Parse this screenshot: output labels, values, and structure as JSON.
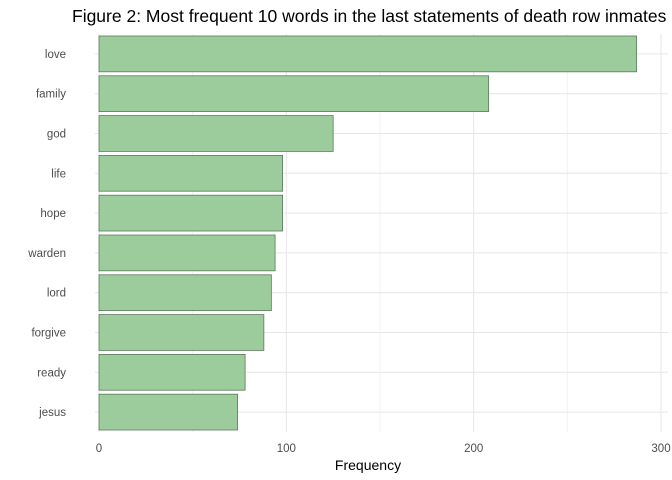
{
  "chart_data": {
    "type": "bar",
    "orientation": "horizontal",
    "title": "Figure 2: Most frequent 10 words in the last statements of death row inmates",
    "xlabel": "Frequency",
    "ylabel": "",
    "categories": [
      "love",
      "family",
      "god",
      "life",
      "hope",
      "warden",
      "lord",
      "forgive",
      "ready",
      "jesus"
    ],
    "values": [
      287,
      208,
      125,
      98,
      98,
      94,
      92,
      88,
      78,
      74
    ],
    "xlim": [
      0,
      300
    ],
    "xticks": [
      0,
      100,
      200,
      300
    ],
    "grid": true,
    "legend": "none",
    "bar_color": "#9ccc9c"
  }
}
